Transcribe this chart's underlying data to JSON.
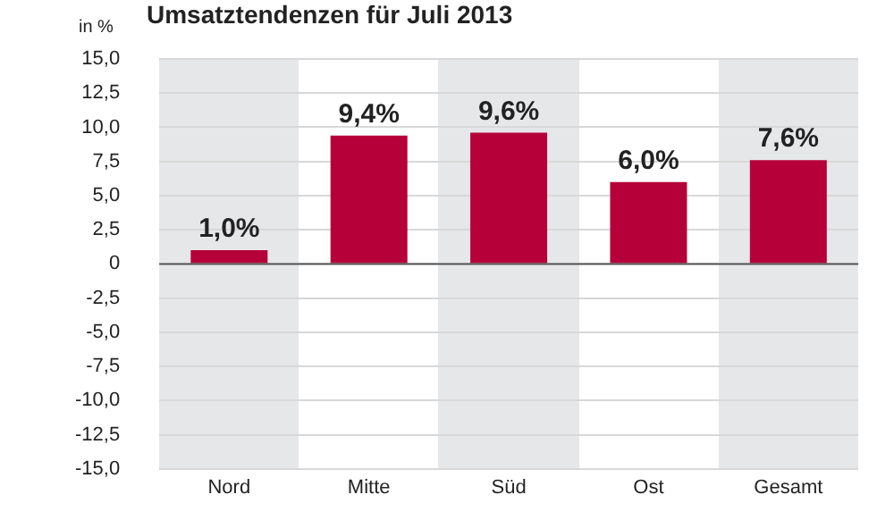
{
  "chart_data": {
    "type": "bar",
    "title": "Umsatztendenzen für Juli 2013",
    "ylabel": "in %",
    "categories": [
      "Nord",
      "Mitte",
      "Süd",
      "Ost",
      "Gesamt"
    ],
    "values": [
      1.0,
      9.4,
      9.6,
      6.0,
      7.6
    ],
    "value_labels": [
      "1,0%",
      "9,4%",
      "9,6%",
      "6,0%",
      "7,6%"
    ],
    "color": "#b5003a",
    "ylim": [
      -15,
      15
    ],
    "yticks": [
      {
        "value": -15,
        "label": "-15,0"
      },
      {
        "value": -12.5,
        "label": "-12,5"
      },
      {
        "value": -10,
        "label": "-10,0"
      },
      {
        "value": -7.5,
        "label": "-7,5"
      },
      {
        "value": -5,
        "label": "-5,0"
      },
      {
        "value": -2.5,
        "label": "-2,5"
      },
      {
        "value": 0,
        "label": "0"
      },
      {
        "value": 2.5,
        "label": "2,5"
      },
      {
        "value": 5,
        "label": "5,0"
      },
      {
        "value": 7.5,
        "label": "7,5"
      },
      {
        "value": 10,
        "label": "10,0"
      },
      {
        "value": 12.5,
        "label": "12,5"
      },
      {
        "value": 15,
        "label": "15,0"
      }
    ],
    "grid": "y"
  }
}
